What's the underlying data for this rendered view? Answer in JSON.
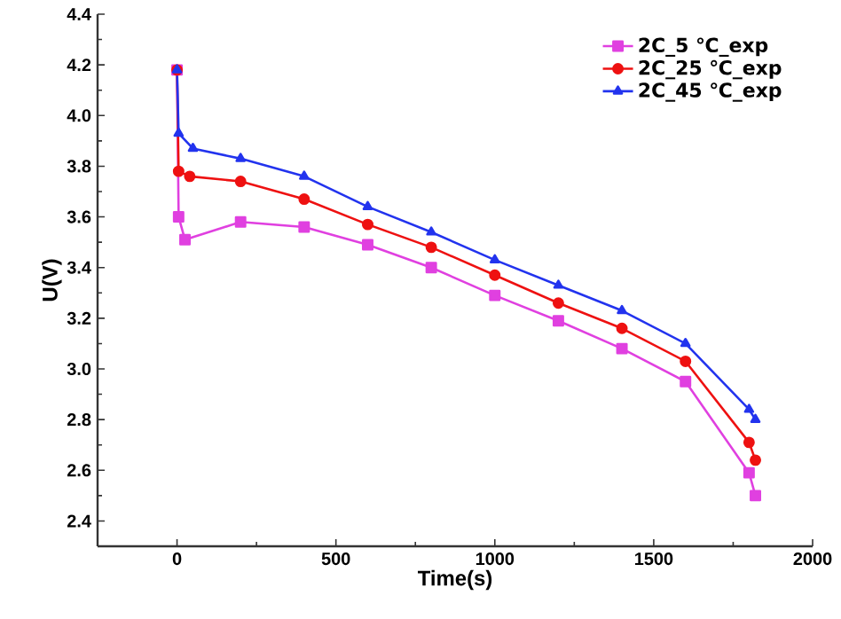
{
  "chart_data": {
    "type": "line",
    "xlabel": "Time(s)",
    "ylabel": "U(V)",
    "xlim": [
      -250,
      2000
    ],
    "ylim": [
      2.3,
      4.4
    ],
    "xticks": [
      0,
      500,
      1000,
      1500,
      2000
    ],
    "yticks": [
      2.4,
      2.6,
      2.8,
      {
        "value": 3,
        "label": "3.0"
      },
      3.2,
      3.4,
      3.6,
      3.8,
      {
        "value": 4,
        "label": "4.0"
      },
      4.2,
      4.4
    ],
    "legend": "top right",
    "line_style": "solid",
    "series": [
      {
        "name": "2C_5 ℃_exp",
        "color": "#e040e0",
        "marker": "square",
        "x": [
          0,
          5,
          25,
          200,
          400,
          600,
          800,
          1000,
          1200,
          1400,
          1600,
          1800,
          1820
        ],
        "values": [
          4.18,
          3.6,
          3.51,
          3.58,
          3.56,
          3.49,
          3.4,
          3.29,
          3.19,
          3.08,
          2.95,
          2.59,
          2.5
        ]
      },
      {
        "name": "2C_25 ℃_exp",
        "color": "#ee1111",
        "marker": "circle",
        "x": [
          0,
          5,
          40,
          200,
          400,
          600,
          800,
          1000,
          1200,
          1400,
          1600,
          1800,
          1820
        ],
        "values": [
          4.18,
          3.78,
          3.76,
          3.74,
          3.67,
          3.57,
          3.48,
          3.37,
          3.26,
          3.16,
          3.03,
          2.71,
          2.64
        ]
      },
      {
        "name": "2C_45 ℃_exp",
        "color": "#2233ee",
        "marker": "triangle",
        "x": [
          0,
          5,
          50,
          200,
          400,
          600,
          800,
          1000,
          1200,
          1400,
          1600,
          1800,
          1820
        ],
        "values": [
          4.18,
          3.93,
          3.87,
          3.83,
          3.76,
          3.64,
          3.54,
          3.43,
          3.33,
          3.23,
          3.1,
          2.84,
          2.8
        ]
      }
    ]
  }
}
